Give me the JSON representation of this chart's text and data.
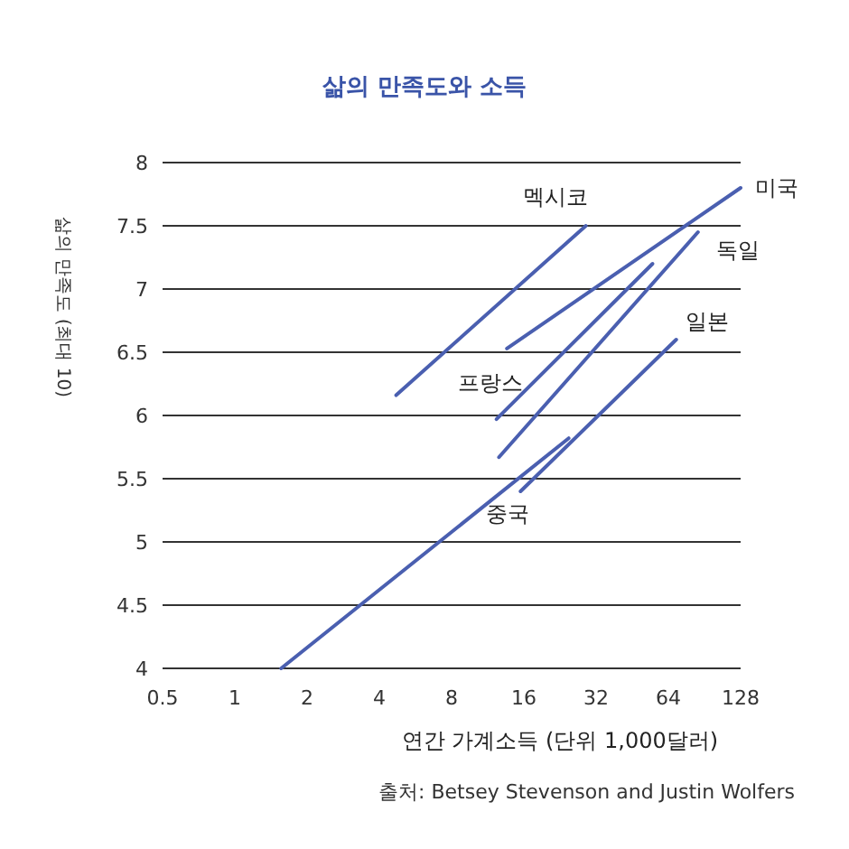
{
  "chart_data": {
    "type": "line",
    "title": "삶의 만족도와 소득",
    "xlabel": "연간 가계소득 (단위 1,000달러)",
    "ylabel": "삶의 만족도 (최대 10)",
    "log": "x",
    "xlim": [
      0.5,
      128
    ],
    "xticks": [
      0.5,
      1,
      2,
      4,
      8,
      16,
      32,
      64,
      128
    ],
    "ylim": [
      4,
      8
    ],
    "yticks": [
      4,
      4.5,
      5,
      5.5,
      6,
      6.5,
      7,
      7.5,
      8
    ],
    "grid": "y",
    "marker": "none",
    "line_style": "solid",
    "series": [
      {
        "name": "멕시코",
        "color": "#4a5fb0",
        "x": [
          4.7,
          29
        ],
        "values": [
          6.16,
          7.5
        ]
      },
      {
        "name": "미국",
        "color": "#4a5fb0",
        "x": [
          13.6,
          128
        ],
        "values": [
          6.53,
          7.8
        ]
      },
      {
        "name": "독일",
        "color": "#4a5fb0",
        "x": [
          12.6,
          85
        ],
        "values": [
          5.67,
          7.45
        ]
      },
      {
        "name": "프랑스",
        "color": "#4a5fb0",
        "x": [
          12.3,
          55
        ],
        "values": [
          5.97,
          7.2
        ]
      },
      {
        "name": "일본",
        "color": "#4a5fb0",
        "x": [
          15.5,
          69
        ],
        "values": [
          5.4,
          6.6
        ]
      },
      {
        "name": "중국",
        "color": "#4a5fb0",
        "x": [
          1.56,
          24.6
        ],
        "values": [
          4.0,
          5.82
        ]
      }
    ],
    "annotations": [
      "출처: Betsey Stevenson and Justin Wolfers"
    ]
  }
}
